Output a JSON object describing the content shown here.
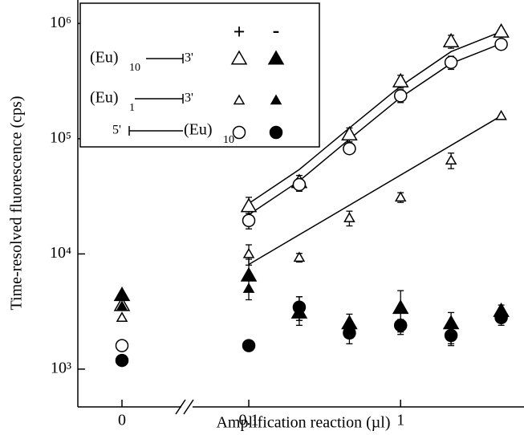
{
  "chart_data": [
    {
      "type": "scatter",
      "y_label": "Time-resolved fluorescence (cps)",
      "log_y": true,
      "ylim": [
        470,
        1600000
      ],
      "yticks": [
        {
          "value": 1000,
          "label": "10³"
        },
        {
          "value": 10000,
          "label": "10⁴"
        },
        {
          "value": 100000,
          "label": "10⁵"
        },
        {
          "value": 1000000,
          "label": "10⁶"
        }
      ],
      "categories": [
        "0"
      ],
      "legend": {
        "columns": [
          "+",
          "-"
        ],
        "rows": [
          {
            "before": "(Eu)",
            "sub": "10",
            "after": "3'"
          },
          {
            "before": "(Eu)",
            "sub": "1",
            "after": "3'"
          },
          {
            "before": "5'",
            "after": "(Eu)",
            "sub": "10"
          }
        ]
      },
      "series": [
        {
          "marker": "triangle",
          "filled": false,
          "color": "#000000",
          "values": [
            3600
          ]
        },
        {
          "marker": "triangle",
          "filled": true,
          "color": "#000000",
          "values": [
            4400
          ]
        },
        {
          "marker": "triangle-small",
          "filled": false,
          "color": "#000000",
          "values": [
            2800
          ]
        },
        {
          "marker": "triangle-small",
          "filled": true,
          "color": "#000000",
          "values": [
            3500
          ]
        },
        {
          "marker": "circle",
          "filled": false,
          "color": "#000000",
          "values": [
            1600
          ]
        },
        {
          "marker": "circle",
          "filled": true,
          "color": "#000000",
          "values": [
            1190
          ]
        }
      ]
    },
    {
      "type": "scatter",
      "x_label": "Amplification reaction (µl)",
      "log_x": true,
      "xlim": [
        0.047,
        6.5
      ],
      "xticks": [
        0.1,
        1
      ],
      "x": [
        0.1,
        0.215,
        0.46,
        1,
        2.15,
        4.6
      ],
      "series": [
        {
          "marker": "triangle",
          "filled": false,
          "color": "#000000",
          "values": [
            26000,
            42000,
            109000,
            315000,
            700000,
            850000
          ],
          "errors": [
            5000,
            6000,
            15000,
            40000,
            90000,
            null
          ]
        },
        {
          "marker": "triangle",
          "filled": true,
          "color": "#000000",
          "values": [
            6500,
            3100,
            2500,
            3400,
            2500,
            3200
          ],
          "errors": [
            2500,
            700,
            500,
            1400,
            600,
            400
          ]
        },
        {
          "marker": "triangle-small",
          "filled": false,
          "color": "#000000",
          "values": [
            10000,
            9300,
            20500,
            31000,
            65000,
            158000
          ],
          "errors": [
            2000,
            800,
            3000,
            3000,
            10000,
            null
          ]
        },
        {
          "marker": "triangle-small",
          "filled": true,
          "color": "#000000",
          "values": [
            5000,
            3450,
            2300,
            2500,
            2100,
            2900
          ],
          "errors": [
            null,
            800,
            null,
            null,
            500,
            null
          ]
        },
        {
          "marker": "circle",
          "filled": false,
          "color": "#000000",
          "values": [
            19500,
            40000,
            82000,
            236000,
            460000,
            660000
          ],
          "errors": [
            3000,
            5000,
            null,
            30000,
            60000,
            null
          ]
        },
        {
          "marker": "circle",
          "filled": true,
          "color": "#000000",
          "values": [
            1600,
            3450,
            2060,
            2400,
            1960,
            2800
          ],
          "errors": [
            null,
            800,
            400,
            300,
            300,
            400
          ]
        }
      ],
      "fits": [
        {
          "color": "#000000",
          "x": [
            0.1,
            0.215,
            0.46,
            1,
            2.15,
            4.6
          ],
          "values": [
            27400,
            54000,
            124000,
            286000,
            570000,
            850000
          ]
        },
        {
          "color": "#000000",
          "x": [
            0.1,
            0.215,
            0.46,
            1,
            2.15,
            4.6
          ],
          "values": [
            21900,
            43000,
            99000,
            228000,
            450000,
            670000
          ]
        },
        {
          "color": "#000000",
          "x": [
            0.1,
            4.6
          ],
          "values": [
            8100,
            158000
          ]
        }
      ]
    }
  ]
}
